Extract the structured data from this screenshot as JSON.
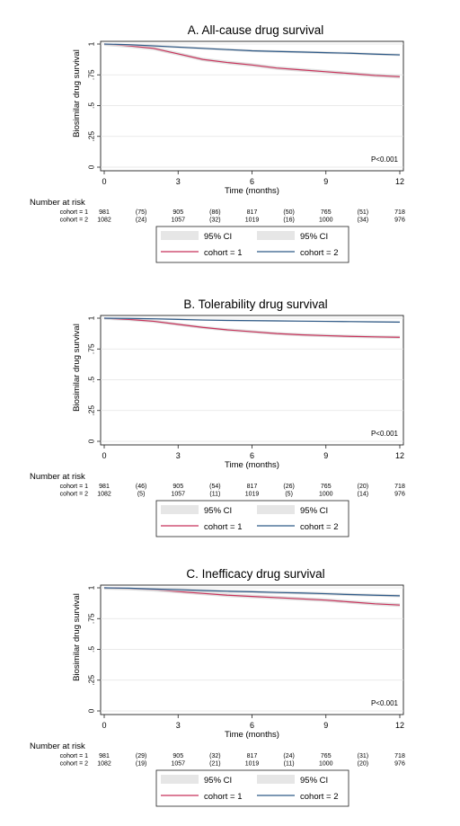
{
  "chart_data": [
    {
      "type": "line",
      "title": "A. All-cause drug survival",
      "xlabel": "Time (months)",
      "ylabel": "Biosimilar drug survival",
      "xlim": [
        0,
        12
      ],
      "ylim": [
        0,
        1
      ],
      "x_ticks": [
        "0",
        "3",
        "6",
        "9",
        "12"
      ],
      "y_ticks": [
        "0",
        ".25",
        ".5",
        ".75",
        "1"
      ],
      "grid": true,
      "annotation": "P<0.001",
      "risk_table": {
        "header": "Number at risk",
        "rows": [
          {
            "label": "cohort = 1",
            "values": [
              "981",
              "(75)",
              "905",
              "(86)",
              "817",
              "(50)",
              "765",
              "(51)",
              "718"
            ]
          },
          {
            "label": "cohort = 2",
            "values": [
              "1082",
              "(24)",
              "1057",
              "(32)",
              "1019",
              "(16)",
              "1000",
              "(34)",
              "976"
            ]
          }
        ]
      },
      "legend": {
        "placement": "bottom",
        "ci_label": "95% CI",
        "series_labels": [
          "cohort = 1",
          "cohort = 2"
        ]
      },
      "series": [
        {
          "name": "cohort = 1",
          "color": "#c8325a",
          "x": [
            0,
            1,
            2,
            3,
            4,
            5,
            6,
            7,
            8,
            9,
            10,
            11,
            12
          ],
          "y": [
            1.0,
            0.985,
            0.965,
            0.92,
            0.875,
            0.85,
            0.83,
            0.805,
            0.79,
            0.775,
            0.76,
            0.745,
            0.735
          ],
          "ci": 0.015
        },
        {
          "name": "cohort = 2",
          "color": "#2e5a88",
          "x": [
            0,
            1,
            2,
            3,
            4,
            5,
            6,
            7,
            8,
            9,
            10,
            11,
            12
          ],
          "y": [
            1.0,
            0.995,
            0.985,
            0.975,
            0.965,
            0.955,
            0.945,
            0.94,
            0.935,
            0.93,
            0.925,
            0.918,
            0.912
          ],
          "ci": 0.01
        }
      ]
    },
    {
      "type": "line",
      "title": "B. Tolerability drug survival",
      "xlabel": "Time (months)",
      "ylabel": "Biosimilar drug survival",
      "xlim": [
        0,
        12
      ],
      "ylim": [
        0,
        1
      ],
      "x_ticks": [
        "0",
        "3",
        "6",
        "9",
        "12"
      ],
      "y_ticks": [
        "0",
        ".25",
        ".5",
        ".75",
        "1"
      ],
      "grid": true,
      "annotation": "P<0.001",
      "risk_table": {
        "header": "Number at risk",
        "rows": [
          {
            "label": "cohort = 1",
            "values": [
              "981",
              "(46)",
              "905",
              "(54)",
              "817",
              "(26)",
              "765",
              "(20)",
              "718"
            ]
          },
          {
            "label": "cohort = 2",
            "values": [
              "1082",
              "(5)",
              "1057",
              "(11)",
              "1019",
              "(5)",
              "1000",
              "(14)",
              "976"
            ]
          }
        ]
      },
      "legend": {
        "placement": "bottom",
        "ci_label": "95% CI",
        "series_labels": [
          "cohort = 1",
          "cohort = 2"
        ]
      },
      "series": [
        {
          "name": "cohort = 1",
          "color": "#c8325a",
          "x": [
            0,
            1,
            2,
            3,
            4,
            5,
            6,
            7,
            8,
            9,
            10,
            11,
            12
          ],
          "y": [
            1.0,
            0.99,
            0.975,
            0.95,
            0.925,
            0.905,
            0.89,
            0.875,
            0.865,
            0.858,
            0.852,
            0.848,
            0.845
          ],
          "ci": 0.013
        },
        {
          "name": "cohort = 2",
          "color": "#2e5a88",
          "x": [
            0,
            1,
            2,
            3,
            4,
            5,
            6,
            7,
            8,
            9,
            10,
            11,
            12
          ],
          "y": [
            1.0,
            0.998,
            0.995,
            0.99,
            0.985,
            0.982,
            0.98,
            0.978,
            0.976,
            0.974,
            0.972,
            0.97,
            0.968
          ],
          "ci": 0.006
        }
      ]
    },
    {
      "type": "line",
      "title": "C. Inefficacy drug survival",
      "xlabel": "Time (months)",
      "ylabel": "Biosimilar drug survival",
      "xlim": [
        0,
        12
      ],
      "ylim": [
        0,
        1
      ],
      "x_ticks": [
        "0",
        "3",
        "6",
        "9",
        "12"
      ],
      "y_ticks": [
        "0",
        ".25",
        ".5",
        ".75",
        "1"
      ],
      "grid": true,
      "annotation": "P<0.001",
      "risk_table": {
        "header": "Number at risk",
        "rows": [
          {
            "label": "cohort = 1",
            "values": [
              "981",
              "(29)",
              "905",
              "(32)",
              "817",
              "(24)",
              "765",
              "(31)",
              "718"
            ]
          },
          {
            "label": "cohort = 2",
            "values": [
              "1082",
              "(19)",
              "1057",
              "(21)",
              "1019",
              "(11)",
              "1000",
              "(20)",
              "976"
            ]
          }
        ]
      },
      "legend": {
        "placement": "bottom",
        "ci_label": "95% CI",
        "series_labels": [
          "cohort = 1",
          "cohort = 2"
        ]
      },
      "series": [
        {
          "name": "cohort = 1",
          "color": "#c8325a",
          "x": [
            0,
            1,
            2,
            3,
            4,
            5,
            6,
            7,
            8,
            9,
            10,
            11,
            12
          ],
          "y": [
            1.0,
            0.995,
            0.985,
            0.97,
            0.955,
            0.94,
            0.93,
            0.92,
            0.91,
            0.9,
            0.885,
            0.87,
            0.86
          ],
          "ci": 0.015
        },
        {
          "name": "cohort = 2",
          "color": "#2e5a88",
          "x": [
            0,
            1,
            2,
            3,
            4,
            5,
            6,
            7,
            8,
            9,
            10,
            11,
            12
          ],
          "y": [
            1.0,
            0.997,
            0.99,
            0.985,
            0.978,
            0.972,
            0.968,
            0.962,
            0.958,
            0.952,
            0.945,
            0.94,
            0.935
          ],
          "ci": 0.012
        }
      ]
    }
  ]
}
